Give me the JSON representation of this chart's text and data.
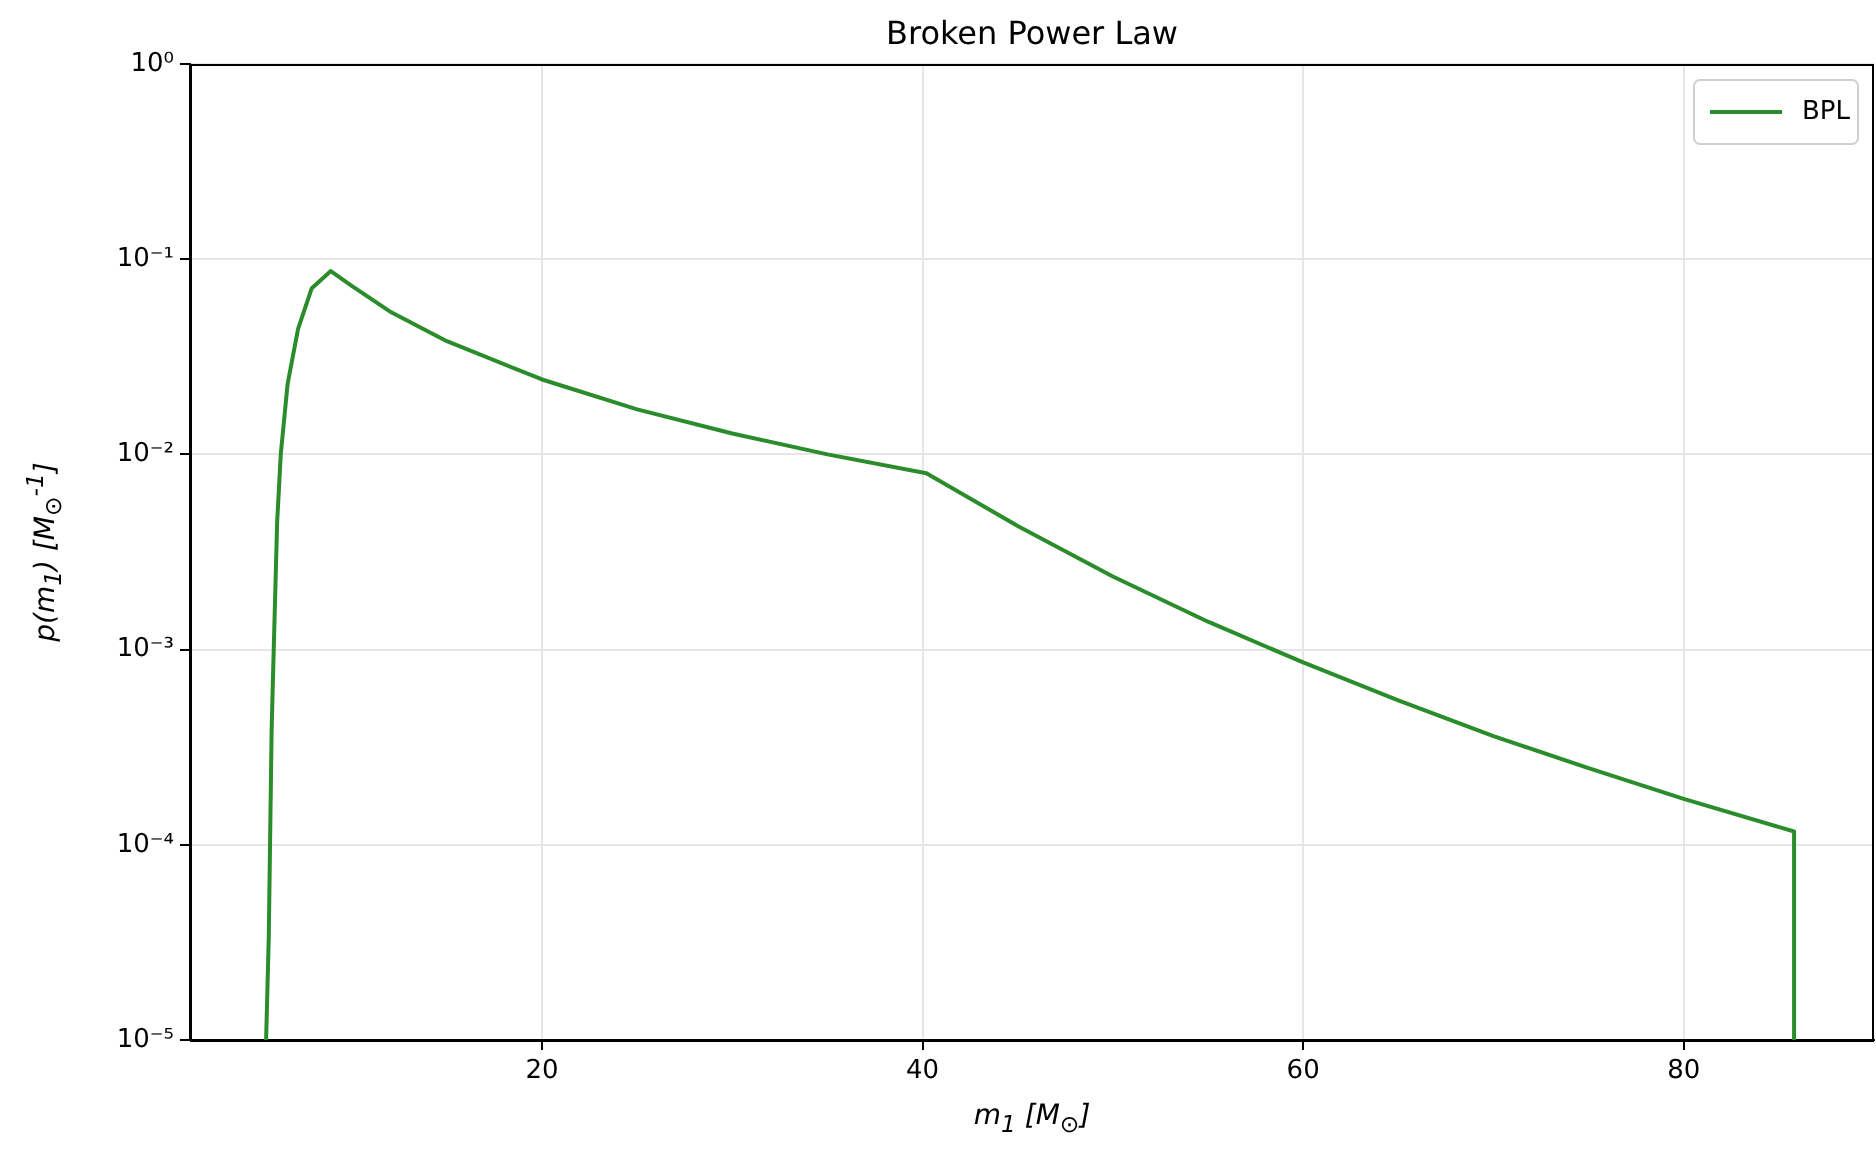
{
  "chart_data": {
    "type": "line",
    "title": "Broken Power Law",
    "xlabel": "m$_{1}$ [M$_{⊙}$]",
    "ylabel": "p(m$_{1}$) [M$_{⊙}$$^{-1}$]",
    "log": "y",
    "grid": true,
    "legend": "top right",
    "marker": "none",
    "line_style": "solid",
    "xlim": [
      1.5,
      90
    ],
    "xticks": [
      20,
      40,
      60,
      80
    ],
    "ylim": [
      1e-05,
      1
    ],
    "yticks": [
      {
        "value": 1e-05,
        "label": "10⁻⁵"
      },
      {
        "value": 0.0001,
        "label": "10⁻⁴"
      },
      {
        "value": 0.001,
        "label": "10⁻³"
      },
      {
        "value": 0.01,
        "label": "10⁻²"
      },
      {
        "value": 0.1,
        "label": "10⁻¹"
      },
      {
        "value": 1,
        "label": "10⁰"
      }
    ],
    "series": [
      {
        "name": "BPL",
        "color": "#2a8c2a",
        "x": [
          5.5,
          5.64,
          5.79,
          5.9,
          6.08,
          6.27,
          6.63,
          7.18,
          7.9,
          8.9,
          10,
          12,
          15,
          20,
          25,
          30,
          35,
          40.2,
          45,
          50,
          55,
          60,
          65,
          70,
          75,
          80,
          85.8,
          85.8
        ],
        "values": [
          1e-05,
          3.4e-05,
          0.00039,
          0.001,
          0.0045,
          0.01,
          0.023,
          0.044,
          0.071,
          0.087,
          0.073,
          0.054,
          0.038,
          0.0242,
          0.017,
          0.0128,
          0.01,
          0.008,
          0.0043,
          0.00237,
          0.00139,
          0.00086,
          0.00055,
          0.00036,
          0.000247,
          0.000172,
          0.000117,
          1e-05
        ]
      }
    ]
  }
}
